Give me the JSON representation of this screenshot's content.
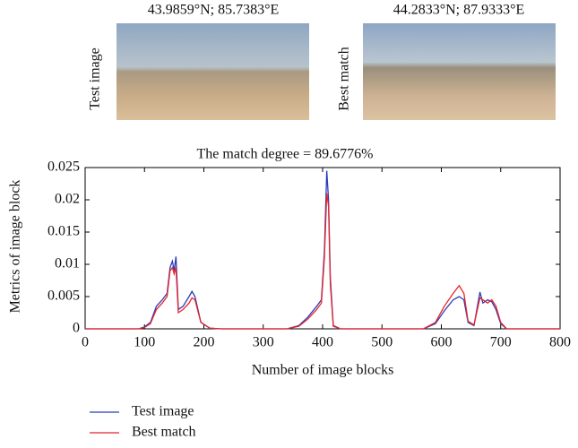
{
  "panels": [
    {
      "caption": "43.9859°N; 85.7383°E",
      "label": "Test image"
    },
    {
      "caption": "44.2833°N; 87.9333°E",
      "label": "Best match"
    }
  ],
  "chart_data": {
    "type": "line",
    "title": "The match degree = 89.6776%",
    "xlabel": "Number of image blocks",
    "ylabel": "Metrics of image block",
    "x": [
      0,
      90,
      100,
      110,
      120,
      130,
      138,
      143,
      147,
      150,
      153,
      157,
      165,
      175,
      180,
      185,
      195,
      210,
      230,
      340,
      360,
      375,
      390,
      398,
      403,
      407,
      410,
      413,
      418,
      430,
      570,
      590,
      605,
      620,
      630,
      638,
      645,
      655,
      665,
      670,
      678,
      685,
      692,
      700,
      710,
      800
    ],
    "series": [
      {
        "name": "Test image",
        "color": "#2b3bb8",
        "values": [
          0,
          0,
          0.0003,
          0.001,
          0.0035,
          0.0045,
          0.0055,
          0.0095,
          0.0105,
          0.009,
          0.0112,
          0.003,
          0.0035,
          0.005,
          0.0058,
          0.005,
          0.001,
          0.0001,
          0,
          0,
          0.0005,
          0.0018,
          0.0035,
          0.0045,
          0.012,
          0.0245,
          0.02,
          0.008,
          0.0005,
          0,
          0,
          0.0008,
          0.0028,
          0.0045,
          0.005,
          0.0045,
          0.001,
          0.0005,
          0.0057,
          0.004,
          0.0045,
          0.0042,
          0.003,
          0.0008,
          0,
          0
        ]
      },
      {
        "name": "Best match",
        "color": "#e8232a",
        "values": [
          0,
          0,
          0.0002,
          0.0008,
          0.003,
          0.004,
          0.005,
          0.009,
          0.0095,
          0.0085,
          0.0095,
          0.0025,
          0.003,
          0.004,
          0.0048,
          0.0045,
          0.001,
          0.0001,
          0,
          0,
          0.0004,
          0.0015,
          0.003,
          0.004,
          0.011,
          0.021,
          0.019,
          0.007,
          0.0004,
          0,
          0,
          0.001,
          0.0035,
          0.0055,
          0.0067,
          0.0055,
          0.0012,
          0.0006,
          0.0048,
          0.0045,
          0.004,
          0.0045,
          0.0035,
          0.001,
          0,
          0
        ]
      }
    ],
    "xlim": [
      0,
      800
    ],
    "xticks": [
      0,
      100,
      200,
      300,
      400,
      500,
      600,
      700,
      800
    ],
    "ylim": [
      0,
      0.025
    ],
    "yticks": [
      0,
      0.005,
      0.01,
      0.015,
      0.02,
      0.025
    ],
    "grid": false,
    "legend": "below"
  }
}
